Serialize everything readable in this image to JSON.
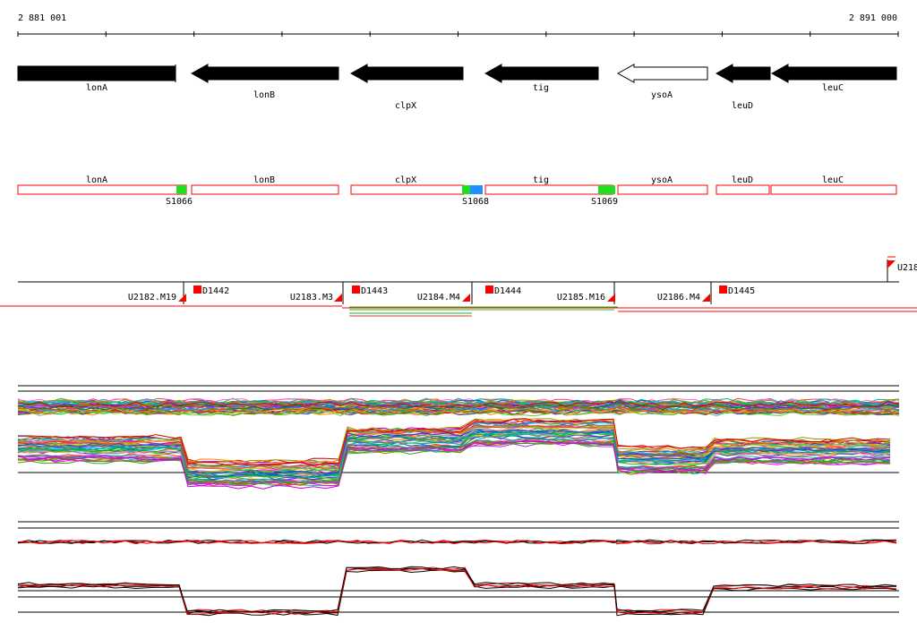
{
  "ruler": {
    "start_label": "2 881 001",
    "end_label": "2 891 000"
  },
  "genes": [
    {
      "name": "lonA",
      "strand": "-",
      "filled": true
    },
    {
      "name": "lonB",
      "strand": "-",
      "filled": true
    },
    {
      "name": "clpX",
      "strand": "-",
      "filled": true
    },
    {
      "name": "tig",
      "strand": "-",
      "filled": true
    },
    {
      "name": "ysoA",
      "strand": "-",
      "filled": false
    },
    {
      "name": "leuD",
      "strand": "-",
      "filled": true
    },
    {
      "name": "leuC",
      "strand": "-",
      "filled": true
    }
  ],
  "segments": [
    {
      "name": "lonA"
    },
    {
      "name": "lonB"
    },
    {
      "name": "clpX"
    },
    {
      "name": "tig"
    },
    {
      "name": "ysoA"
    },
    {
      "name": "leuD"
    },
    {
      "name": "leuC"
    }
  ],
  "sites": [
    {
      "label": "S1066",
      "color": "#22dd22"
    },
    {
      "label": "S1068",
      "color": "#22dd22",
      "color2": "#1e90ff"
    },
    {
      "label": "S1069",
      "color": "#22dd22"
    }
  ],
  "upshifts": [
    "U2182.M19",
    "U2183.M3",
    "U2184.M4",
    "U2185.M16",
    "U2186.M4"
  ],
  "downshifts": [
    "D1442",
    "D1443",
    "D1444",
    "D1445"
  ],
  "edge_label": "U218",
  "colors": {
    "site_green": "#22dd22",
    "site_blue": "#1e90ff",
    "marker_red": "#ff0000",
    "segment_border": "#ff0000"
  }
}
